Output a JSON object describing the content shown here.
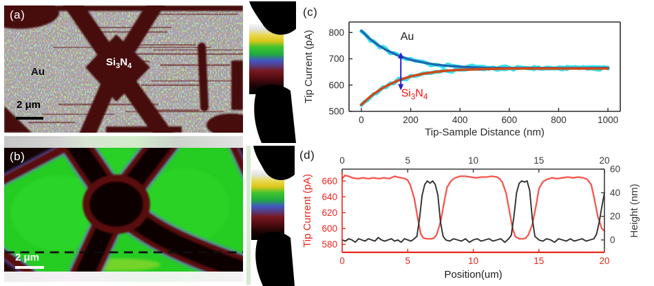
{
  "panels": {
    "a": {
      "label": "(a)",
      "au_label": "Au",
      "si3n4_parts": [
        [
          "Si",
          false
        ],
        [
          "3",
          true
        ],
        [
          "N",
          false
        ],
        [
          "4",
          true
        ]
      ],
      "scalebar_text": "2 μm"
    },
    "b": {
      "label": "(b)",
      "scalebar_text": "2 μm"
    },
    "c": {
      "label": "(c)"
    },
    "d": {
      "label": "(d)"
    }
  },
  "colors": {
    "panel_a_base_speckle": "#d6c565",
    "panel_a_dark_region": "#470b0e",
    "panel_b_green": "#25cc22",
    "panel_b_border_maroon": "#5a0d10",
    "panel_b_fringe_blue": "#6f6fe0",
    "panel_b_core_black": "#0a0101",
    "colorbar_gradient_top_to_bottom": [
      "#f5f5f5",
      "#e8d84e",
      "#3fc32f",
      "#4157c4",
      "#77191f",
      "#000000"
    ]
  },
  "chart_data": [
    {
      "id": "c",
      "type": "line",
      "xlabel": "Tip-Sample Distance (nm)",
      "ylabel": "Tip Current (pA)",
      "xlim": [
        -50,
        1050
      ],
      "ylim": [
        500,
        840
      ],
      "xticks": [
        0,
        200,
        400,
        600,
        800,
        1000
      ],
      "yticks": [
        500,
        600,
        700,
        800
      ],
      "axis_color": "#2b2b2b",
      "grid": false,
      "legend_position": "none",
      "series": [
        {
          "name": "Au",
          "color": "#1a6ab0",
          "width": 3.4,
          "halo": {
            "color": "#3fe0ee",
            "width": 5.5,
            "jitter": 2.6
          },
          "x": [
            0,
            25,
            50,
            75,
            100,
            150,
            200,
            250,
            300,
            350,
            400,
            500,
            600,
            700,
            800,
            900,
            1000
          ],
          "y": [
            807,
            784,
            764,
            748,
            734,
            712,
            696,
            686,
            678,
            673,
            670,
            666,
            665,
            665,
            665,
            665,
            666
          ]
        },
        {
          "name": "Si3N4",
          "color": "#cf4a1b",
          "width": 3.6,
          "halo": {
            "color": "#3fe0ee",
            "width": 5.5,
            "jitter": 2.6
          },
          "x": [
            0,
            25,
            50,
            75,
            100,
            150,
            200,
            250,
            300,
            350,
            400,
            500,
            600,
            700,
            800,
            900,
            1000
          ],
          "y": [
            525,
            547,
            566,
            582,
            596,
            618,
            633,
            643,
            650,
            655,
            658,
            661,
            663,
            663,
            663,
            663,
            663
          ]
        }
      ],
      "annotations": [
        {
          "type": "text",
          "text": "Au",
          "x": 186,
          "y": 772,
          "color": "#1a1a1a",
          "size": 16
        },
        {
          "type": "formula",
          "parts": [
            [
              "Si",
              false
            ],
            [
              "3",
              true
            ],
            [
              "N",
              false
            ],
            [
              "4",
              true
            ]
          ],
          "x": 215,
          "y": 556,
          "color": "#fb0d0d",
          "size": 16
        },
        {
          "type": "varrow",
          "x": 160,
          "y1": 580,
          "y2": 725,
          "color": "#2a1fcb"
        }
      ]
    },
    {
      "id": "d",
      "type": "line",
      "xlabel": "Position(um)",
      "ylabel_left": "Tip Current (pA)",
      "ylabel_right": "Height (nm)",
      "xlim": [
        0,
        20
      ],
      "ylim": [
        570,
        675
      ],
      "ylim_right": [
        -10.5,
        60
      ],
      "xticks": [
        0,
        5,
        10,
        15,
        20
      ],
      "xticks_top": [
        0,
        5,
        10,
        15,
        20
      ],
      "yticks": [
        580,
        600,
        620,
        640,
        660
      ],
      "yticks_right": [
        0,
        20,
        40,
        60
      ],
      "left_color": "#e8251d",
      "right_color": "#3a3a3a",
      "grid": false,
      "legend_position": "none",
      "series": [
        {
          "name": "Tip Current",
          "axis": "left",
          "color": "#f4564d",
          "width": 2.3,
          "x": [
            0,
            0.2,
            0.5,
            0.8,
            1.2,
            1.6,
            2,
            2.4,
            2.8,
            3.2,
            3.6,
            4,
            4.2,
            4.5,
            4.8,
            5,
            5.2,
            5.5,
            5.8,
            6,
            6.2,
            6.5,
            6.8,
            7,
            7.2,
            7.5,
            7.8,
            8,
            8.3,
            8.6,
            9,
            9.4,
            9.8,
            10.2,
            10.6,
            11,
            11.4,
            11.8,
            12,
            12.2,
            12.5,
            12.8,
            13,
            13.2,
            13.5,
            13.8,
            14,
            14.2,
            14.5,
            14.8,
            15,
            15.3,
            15.6,
            16,
            16.4,
            16.8,
            17.2,
            17.6,
            18,
            18.4,
            18.7,
            19,
            19.2,
            19.5,
            19.8,
            20
          ],
          "y": [
            663,
            667,
            666,
            664,
            663,
            664,
            663,
            664,
            663,
            664,
            663,
            666,
            665,
            664,
            663,
            661,
            655,
            638,
            610,
            593,
            588,
            587,
            587,
            588,
            592,
            608,
            635,
            652,
            660,
            664,
            666,
            666,
            665,
            664,
            665,
            665,
            666,
            665,
            663,
            659,
            645,
            618,
            600,
            590,
            587,
            587,
            588,
            592,
            605,
            630,
            650,
            659,
            662,
            664,
            663,
            664,
            665,
            664,
            665,
            664,
            662,
            655,
            640,
            615,
            600,
            597
          ]
        },
        {
          "name": "Height",
          "axis": "right",
          "color": "#2e2e2e",
          "width": 1.9,
          "x": [
            0,
            0.25,
            0.5,
            0.75,
            1,
            1.25,
            1.5,
            1.75,
            2,
            2.25,
            2.5,
            2.75,
            3,
            3.25,
            3.5,
            3.75,
            4,
            4.25,
            4.5,
            4.75,
            5,
            5.25,
            5.5,
            5.7,
            5.9,
            6.1,
            6.3,
            6.5,
            6.7,
            6.9,
            7.1,
            7.3,
            7.5,
            7.7,
            7.9,
            8.2,
            8.5,
            8.8,
            9.1,
            9.4,
            9.7,
            10,
            10.3,
            10.6,
            10.9,
            11.2,
            11.5,
            11.8,
            12.1,
            12.4,
            12.7,
            12.9,
            13.1,
            13.3,
            13.5,
            13.7,
            13.9,
            14.1,
            14.3,
            14.5,
            14.7,
            15,
            15.3,
            15.6,
            15.9,
            16.2,
            16.5,
            16.8,
            17.1,
            17.4,
            17.7,
            18,
            18.3,
            18.6,
            18.9,
            19.2,
            19.4,
            19.6,
            19.8,
            20
          ],
          "y": [
            0,
            -1,
            1,
            0,
            -2,
            1,
            0,
            -1,
            1,
            0,
            -1,
            2,
            0,
            -1,
            0,
            1,
            -1,
            0,
            -2,
            1,
            0,
            -1,
            1,
            3,
            18,
            38,
            47,
            50,
            48,
            50,
            47,
            38,
            15,
            3,
            0,
            -1,
            1,
            0,
            -1,
            1,
            -2,
            0,
            1,
            -1,
            0,
            1,
            -1,
            0,
            1,
            -2,
            1,
            4,
            20,
            40,
            48,
            50,
            49,
            50,
            42,
            18,
            3,
            0,
            -1,
            1,
            0,
            -2,
            1,
            0,
            -1,
            1,
            -1,
            0,
            1,
            -1,
            0,
            1,
            5,
            15,
            28,
            40
          ]
        }
      ],
      "annotations": []
    }
  ]
}
